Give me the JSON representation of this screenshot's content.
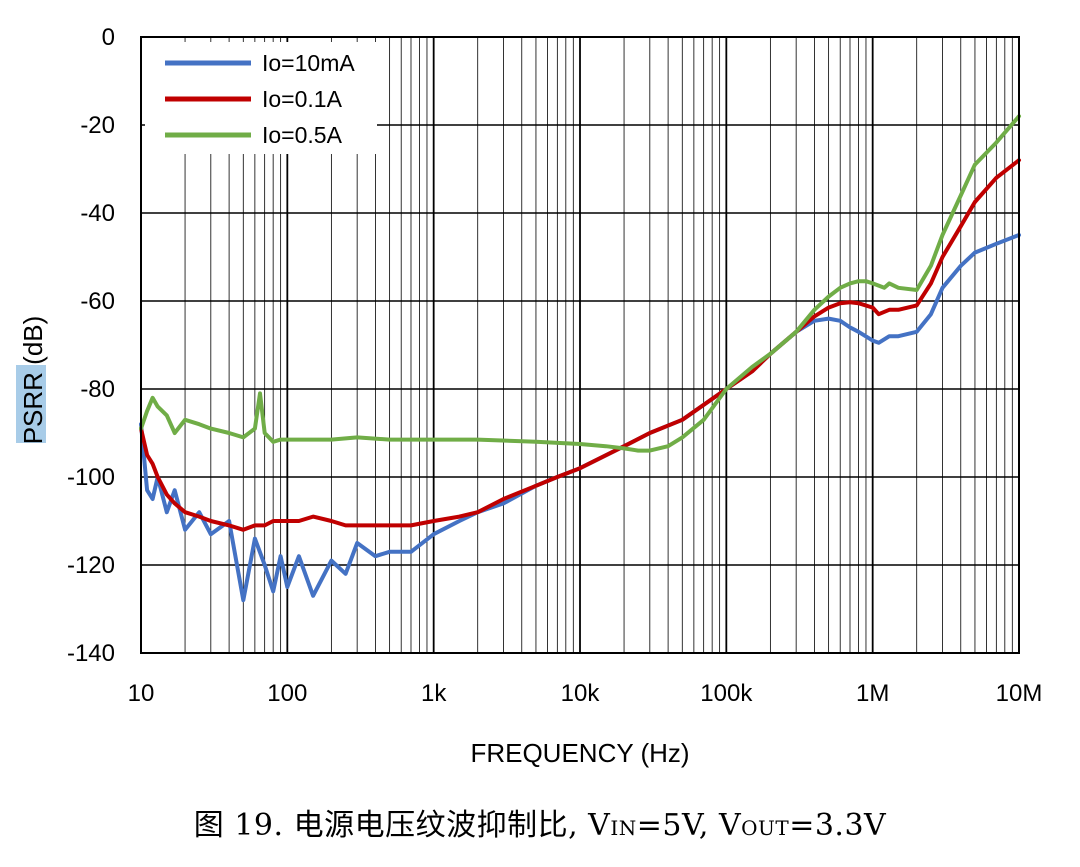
{
  "chart_data": {
    "type": "line",
    "xscale": "log",
    "xlabel": "FREQUENCY (Hz)",
    "ylabel": "PSRR (dB)",
    "xlim": [
      10,
      10000000
    ],
    "ylim": [
      -140,
      0
    ],
    "yticks": [
      0,
      -20,
      -40,
      -60,
      -80,
      -100,
      -120,
      -140
    ],
    "ytick_labels": [
      "0",
      "-20",
      "-40",
      "-60",
      "-80",
      "-100",
      "-120",
      "-140"
    ],
    "xticks": [
      10,
      100,
      1000,
      10000,
      100000,
      1000000,
      10000000
    ],
    "xtick_labels": [
      "10",
      "100",
      "1k",
      "10k",
      "100k",
      "1M",
      "10M"
    ],
    "grid": true,
    "legend_position": "top-left",
    "series": [
      {
        "name": "Io=10mA",
        "color": "#4472C4",
        "x": [
          10,
          11,
          12,
          13,
          15,
          17,
          20,
          25,
          30,
          40,
          50,
          60,
          70,
          80,
          90,
          100,
          120,
          150,
          200,
          250,
          300,
          400,
          500,
          700,
          1000,
          1500,
          2000,
          3000,
          5000,
          7000,
          10000,
          20000,
          30000,
          50000,
          100000,
          150000,
          200000,
          300000,
          400000,
          500000,
          600000,
          700000,
          800000,
          1000000,
          1100000,
          1300000,
          1500000,
          2000000,
          2500000,
          3000000,
          4000000,
          5000000,
          7000000,
          10000000
        ],
        "y": [
          -88,
          -103,
          -105,
          -100,
          -108,
          -103,
          -112,
          -108,
          -113,
          -110,
          -128,
          -114,
          -120,
          -126,
          -118,
          -125,
          -118,
          -127,
          -119,
          -122,
          -115,
          -118,
          -117,
          -117,
          -113,
          -110,
          -108,
          -106,
          -102,
          -100,
          -98,
          -93,
          -90,
          -87,
          -80,
          -76,
          -72,
          -67,
          -64.5,
          -64,
          -64.5,
          -66,
          -67,
          -69,
          -69.5,
          -68,
          -68,
          -67,
          -63,
          -57,
          -52,
          -49,
          -47,
          -45
        ]
      },
      {
        "name": "Io=0.1A",
        "color": "#C00000",
        "x": [
          10,
          11,
          12,
          13,
          15,
          17,
          20,
          25,
          30,
          40,
          50,
          60,
          70,
          80,
          90,
          100,
          120,
          150,
          200,
          250,
          300,
          400,
          500,
          700,
          1000,
          1500,
          2000,
          3000,
          5000,
          7000,
          10000,
          20000,
          30000,
          50000,
          100000,
          150000,
          200000,
          300000,
          400000,
          500000,
          600000,
          700000,
          800000,
          1000000,
          1100000,
          1300000,
          1500000,
          2000000,
          2500000,
          3000000,
          4000000,
          5000000,
          7000000,
          10000000
        ],
        "y": [
          -89,
          -95,
          -97,
          -100,
          -104,
          -106,
          -108,
          -109,
          -110,
          -111,
          -112,
          -111,
          -111,
          -110,
          -110,
          -110,
          -110,
          -109,
          -110,
          -111,
          -111,
          -111,
          -111,
          -111,
          -110,
          -109,
          -108,
          -105,
          -102,
          -100,
          -98,
          -93,
          -90,
          -87,
          -80,
          -76,
          -72,
          -67,
          -63.5,
          -61.5,
          -60.5,
          -60.3,
          -60.5,
          -61.5,
          -63,
          -62,
          -62,
          -61,
          -56,
          -50,
          -43,
          -37.5,
          -32,
          -28
        ]
      },
      {
        "name": "Io=0.5A",
        "color": "#70AD47",
        "x": [
          10,
          11,
          12,
          13,
          15,
          17,
          20,
          25,
          30,
          40,
          50,
          60,
          65,
          70,
          80,
          90,
          100,
          150,
          200,
          300,
          500,
          1000,
          2000,
          5000,
          10000,
          15000,
          20000,
          25000,
          30000,
          40000,
          50000,
          70000,
          100000,
          150000,
          200000,
          300000,
          400000,
          500000,
          600000,
          700000,
          800000,
          900000,
          1000000,
          1200000,
          1300000,
          1500000,
          2000000,
          2500000,
          3000000,
          4000000,
          5000000,
          7000000,
          10000000
        ],
        "y": [
          -89,
          -85,
          -82,
          -84,
          -86,
          -90,
          -87,
          -88,
          -89,
          -90,
          -91,
          -89,
          -81,
          -90,
          -92,
          -91.5,
          -91.5,
          -91.5,
          -91.5,
          -91,
          -91.5,
          -91.5,
          -91.5,
          -92,
          -92.5,
          -93,
          -93.5,
          -94,
          -94,
          -93,
          -91,
          -87,
          -80,
          -75,
          -72,
          -67,
          -62,
          -59,
          -57,
          -56,
          -55.5,
          -55.5,
          -56,
          -57,
          -56,
          -57,
          -57.5,
          -52,
          -45,
          -36,
          -29,
          -24,
          -18
        ]
      }
    ]
  },
  "caption": {
    "prefix": "图 19. 电源电压纹波抑制比, ",
    "vin_v": "V",
    "vin_sub": "IN",
    "vin_eq": "=5V, ",
    "vout_v": "V",
    "vout_sub": "OUT",
    "vout_eq": "=3.3V"
  }
}
